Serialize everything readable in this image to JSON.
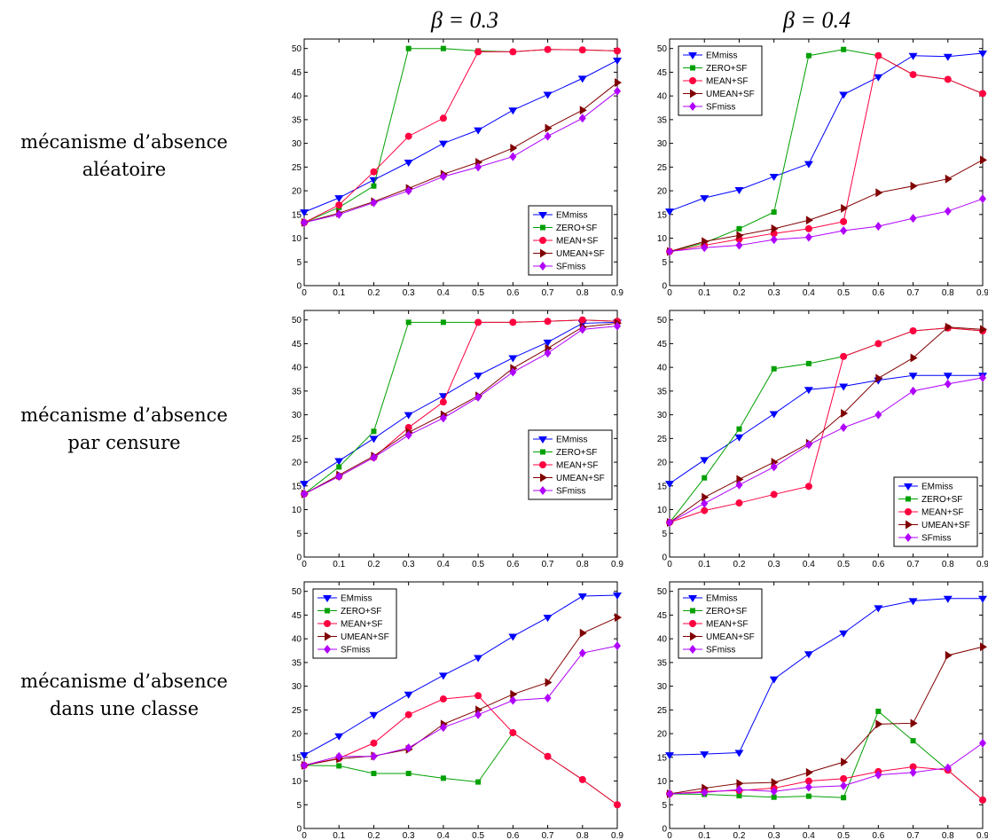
{
  "column_titles": [
    "β = 0.3",
    "β = 0.4"
  ],
  "row_labels": [
    [
      "mécanisme d’absence",
      "aléatoire"
    ],
    [
      "mécanisme d’absence",
      "par censure"
    ],
    [
      "mécanisme d’absence",
      "dans une classe"
    ]
  ],
  "colors": {
    "EMmiss": "#0000ff",
    "ZERO+SF": "#00a000",
    "MEAN+SF": "#ff0040",
    "UMEAN+SF": "#800000",
    "SFmiss": "#b000ff"
  },
  "chart_data": [
    {
      "type": "line",
      "row": "aléatoire",
      "beta": "0.3",
      "x": [
        0,
        0.1,
        0.2,
        0.3,
        0.4,
        0.5,
        0.6,
        0.7,
        0.8,
        0.9
      ],
      "xticks": [
        "0",
        "0.1",
        "0.2",
        "0.3",
        "0.4",
        "0.5",
        "0.6",
        "0.7",
        "0.8",
        "0.9"
      ],
      "ylim": [
        0,
        52
      ],
      "yticks": [
        0,
        5,
        10,
        15,
        20,
        25,
        30,
        35,
        40,
        45,
        50
      ],
      "legend": "bottom-right",
      "series": [
        {
          "name": "EMmiss",
          "values": [
            15.5,
            18.5,
            22.3,
            26.0,
            30.0,
            32.8,
            37.0,
            40.3,
            43.7,
            47.5
          ]
        },
        {
          "name": "ZERO+SF",
          "values": [
            13.3,
            16.5,
            21.0,
            50.0,
            50.0,
            49.5,
            49.3,
            49.8,
            49.7,
            49.5
          ]
        },
        {
          "name": "MEAN+SF",
          "values": [
            13.3,
            17.0,
            24.0,
            31.5,
            35.3,
            49.3,
            49.3,
            49.8,
            49.7,
            49.5
          ]
        },
        {
          "name": "UMEAN+SF",
          "values": [
            13.3,
            15.3,
            17.7,
            20.5,
            23.5,
            26.0,
            29.0,
            33.2,
            37.0,
            42.8
          ]
        },
        {
          "name": "SFmiss",
          "values": [
            13.3,
            15.0,
            17.5,
            20.0,
            23.0,
            25.0,
            27.2,
            31.5,
            35.3,
            41.0
          ]
        }
      ]
    },
    {
      "type": "line",
      "row": "aléatoire",
      "beta": "0.4",
      "x": [
        0,
        0.1,
        0.2,
        0.3,
        0.4,
        0.5,
        0.6,
        0.7,
        0.8,
        0.9
      ],
      "xticks": [
        "0",
        "0.1",
        "0.2",
        "0.3",
        "0.4",
        "0.5",
        "0.6",
        "0.7",
        "0.8",
        "0.9"
      ],
      "ylim": [
        0,
        52
      ],
      "yticks": [
        0,
        5,
        10,
        15,
        20,
        25,
        30,
        35,
        40,
        45,
        50
      ],
      "legend": "top-left",
      "series": [
        {
          "name": "EMmiss",
          "values": [
            15.7,
            18.5,
            20.2,
            23.0,
            25.7,
            40.3,
            44.0,
            48.5,
            48.3,
            49.0
          ]
        },
        {
          "name": "ZERO+SF",
          "values": [
            7.2,
            9.0,
            12.0,
            15.5,
            48.5,
            49.8,
            48.5,
            44.5,
            43.5,
            40.5
          ]
        },
        {
          "name": "MEAN+SF",
          "values": [
            7.2,
            8.5,
            9.8,
            11.0,
            12.0,
            13.5,
            48.5,
            44.5,
            43.5,
            40.5
          ]
        },
        {
          "name": "UMEAN+SF",
          "values": [
            7.2,
            9.3,
            10.6,
            12.0,
            13.8,
            16.3,
            19.6,
            21.0,
            22.5,
            26.5
          ]
        },
        {
          "name": "SFmiss",
          "values": [
            7.2,
            8.0,
            8.5,
            9.7,
            10.2,
            11.6,
            12.5,
            14.2,
            15.7,
            18.3
          ]
        }
      ]
    },
    {
      "type": "line",
      "row": "par censure",
      "beta": "0.3",
      "x": [
        0,
        0.1,
        0.2,
        0.3,
        0.4,
        0.5,
        0.6,
        0.7,
        0.8,
        0.9
      ],
      "xticks": [
        "0",
        "0.1",
        "0.2",
        "0.3",
        "0.4",
        "0.5",
        "0.6",
        "0.7",
        "0.8",
        "0.9"
      ],
      "ylim": [
        0,
        52
      ],
      "yticks": [
        0,
        5,
        10,
        15,
        20,
        25,
        30,
        35,
        40,
        45,
        50
      ],
      "legend": "middle-right",
      "series": [
        {
          "name": "EMmiss",
          "values": [
            15.5,
            20.3,
            25.0,
            30.0,
            34.0,
            38.3,
            42.0,
            45.3,
            49.3,
            49.5
          ]
        },
        {
          "name": "ZERO+SF",
          "values": [
            13.3,
            19.0,
            26.5,
            49.5,
            49.5,
            49.5,
            49.5,
            49.7,
            50.0,
            49.7
          ]
        },
        {
          "name": "MEAN+SF",
          "values": [
            13.3,
            17.0,
            21.0,
            27.3,
            32.7,
            49.5,
            49.5,
            49.7,
            50.0,
            49.7
          ]
        },
        {
          "name": "UMEAN+SF",
          "values": [
            13.3,
            17.3,
            21.3,
            26.3,
            30.0,
            34.0,
            39.8,
            44.0,
            48.5,
            49.3
          ]
        },
        {
          "name": "SFmiss",
          "values": [
            13.3,
            17.0,
            21.0,
            25.7,
            29.3,
            33.7,
            39.0,
            43.0,
            48.0,
            48.7
          ]
        }
      ]
    },
    {
      "type": "line",
      "row": "par censure",
      "beta": "0.4",
      "x": [
        0,
        0.1,
        0.2,
        0.3,
        0.4,
        0.5,
        0.6,
        0.7,
        0.8,
        0.9
      ],
      "xticks": [
        "0",
        "0.1",
        "0.2",
        "0.3",
        "0.4",
        "0.5",
        "0.6",
        "0.7",
        "0.8",
        "0.9"
      ],
      "ylim": [
        0,
        52
      ],
      "yticks": [
        0,
        5,
        10,
        15,
        20,
        25,
        30,
        35,
        40,
        45,
        50
      ],
      "legend": "bottom-right",
      "series": [
        {
          "name": "EMmiss",
          "values": [
            15.5,
            20.5,
            25.3,
            30.2,
            35.3,
            36.0,
            37.3,
            38.3,
            38.3,
            38.3
          ]
        },
        {
          "name": "ZERO+SF",
          "values": [
            7.3,
            16.7,
            27.0,
            39.7,
            40.8,
            42.3,
            45.0,
            47.7,
            48.3,
            47.7
          ]
        },
        {
          "name": "MEAN+SF",
          "values": [
            7.3,
            9.8,
            11.4,
            13.2,
            14.9,
            42.3,
            45.0,
            47.7,
            48.3,
            47.7
          ]
        },
        {
          "name": "UMEAN+SF",
          "values": [
            7.3,
            12.6,
            16.4,
            20.0,
            24.0,
            30.3,
            37.7,
            42.0,
            48.5,
            48.0
          ]
        },
        {
          "name": "SFmiss",
          "values": [
            7.3,
            11.3,
            15.2,
            19.0,
            23.7,
            27.3,
            30.0,
            35.0,
            36.5,
            37.8
          ]
        }
      ]
    },
    {
      "type": "line",
      "row": "dans une classe",
      "beta": "0.3",
      "x": [
        0,
        0.1,
        0.2,
        0.3,
        0.4,
        0.5,
        0.6,
        0.7,
        0.8,
        0.9
      ],
      "xticks": [
        "0",
        "0.1",
        "0.2",
        "0.3",
        "0.4",
        "0.5",
        "0.6",
        "0.7",
        "0.8",
        "0.9"
      ],
      "ylim": [
        0,
        52
      ],
      "yticks": [
        0,
        5,
        10,
        15,
        20,
        25,
        30,
        35,
        40,
        45,
        50
      ],
      "legend": "top-left",
      "series": [
        {
          "name": "EMmiss",
          "values": [
            15.5,
            19.5,
            24.0,
            28.3,
            32.3,
            36.0,
            40.5,
            44.5,
            49.0,
            49.2
          ]
        },
        {
          "name": "ZERO+SF",
          "values": [
            13.3,
            13.2,
            11.6,
            11.6,
            10.6,
            9.8,
            20.2,
            15.2,
            10.3,
            5.0
          ]
        },
        {
          "name": "MEAN+SF",
          "values": [
            13.3,
            14.8,
            18.0,
            24.0,
            27.3,
            28.0,
            20.2,
            15.2,
            10.3,
            5.0
          ]
        },
        {
          "name": "UMEAN+SF",
          "values": [
            13.3,
            14.7,
            15.3,
            16.7,
            22.0,
            25.0,
            28.3,
            30.8,
            41.2,
            44.5
          ]
        },
        {
          "name": "SFmiss",
          "values": [
            13.3,
            15.2,
            15.2,
            17.0,
            21.3,
            24.0,
            27.0,
            27.5,
            37.0,
            38.5
          ]
        }
      ]
    },
    {
      "type": "line",
      "row": "dans une classe",
      "beta": "0.4",
      "x": [
        0,
        0.1,
        0.2,
        0.3,
        0.4,
        0.5,
        0.6,
        0.7,
        0.8,
        0.9
      ],
      "xticks": [
        "0",
        "0.1",
        "0.2",
        "0.3",
        "0.4",
        "0.5",
        "0.6",
        "0.7",
        "0.8",
        "0.9"
      ],
      "ylim": [
        0,
        52
      ],
      "yticks": [
        0,
        5,
        10,
        15,
        20,
        25,
        30,
        35,
        40,
        45,
        50
      ],
      "legend": "top-left",
      "series": [
        {
          "name": "EMmiss",
          "values": [
            15.5,
            15.7,
            16.0,
            31.5,
            36.8,
            41.2,
            46.5,
            48.0,
            48.5,
            48.5
          ]
        },
        {
          "name": "ZERO+SF",
          "values": [
            7.3,
            7.2,
            6.9,
            6.6,
            6.8,
            6.5,
            24.7,
            18.5,
            12.3,
            6.0
          ]
        },
        {
          "name": "MEAN+SF",
          "values": [
            7.3,
            7.8,
            8.0,
            8.5,
            10.0,
            10.5,
            12.0,
            13.0,
            12.3,
            6.0
          ]
        },
        {
          "name": "UMEAN+SF",
          "values": [
            7.3,
            8.5,
            9.5,
            9.7,
            11.8,
            14.0,
            22.0,
            22.2,
            36.5,
            38.3
          ]
        },
        {
          "name": "SFmiss",
          "values": [
            7.3,
            7.6,
            8.2,
            7.8,
            8.7,
            9.0,
            11.3,
            11.8,
            12.8,
            18.0
          ]
        }
      ]
    }
  ]
}
